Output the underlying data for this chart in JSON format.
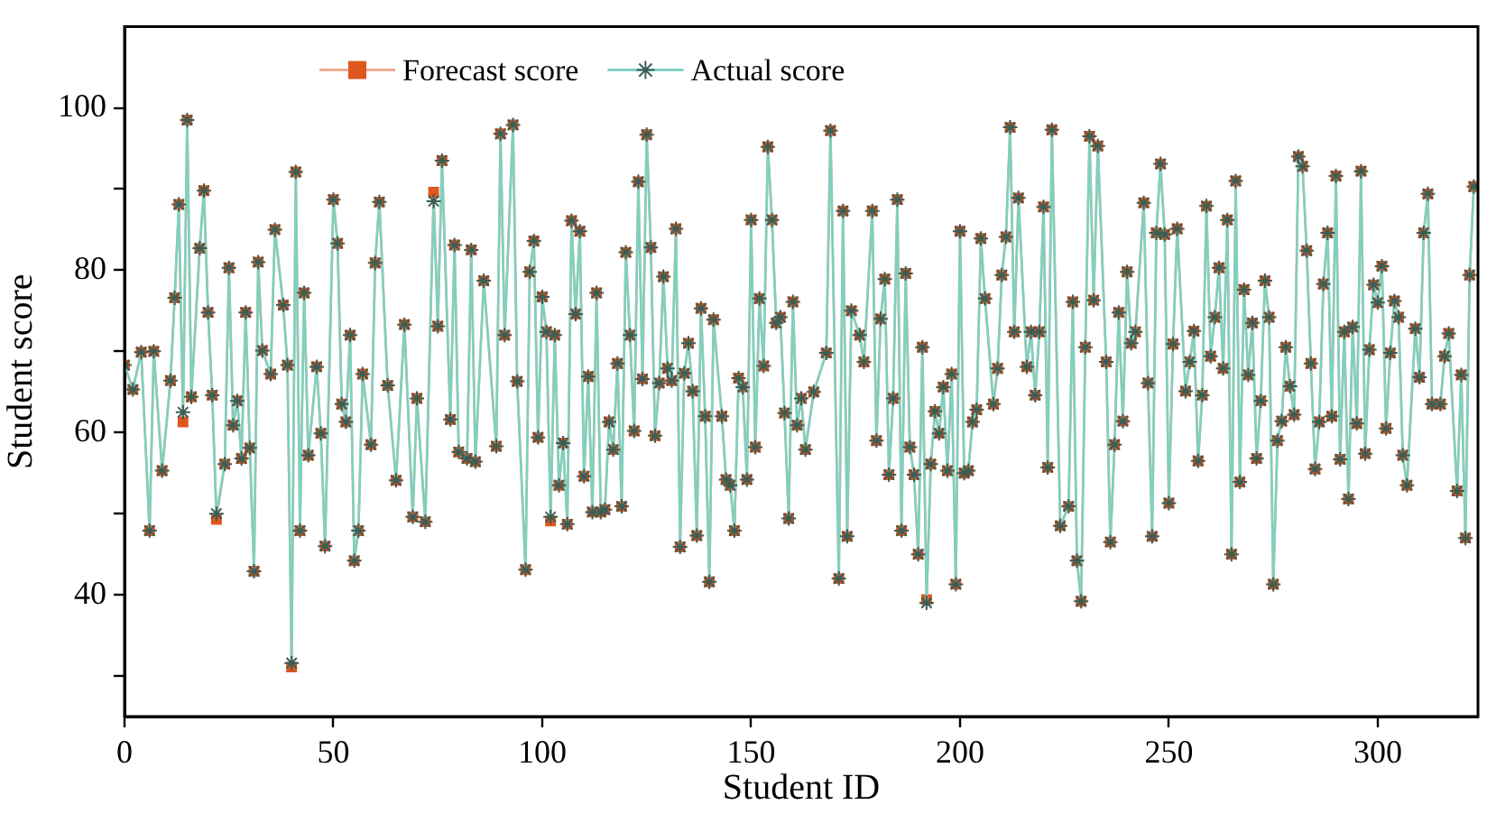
{
  "chart_data": {
    "type": "line",
    "xlabel": "Student ID",
    "ylabel": "Student score",
    "legend": "top left",
    "grid": false,
    "xlim": [
      0,
      324
    ],
    "ylim": [
      25,
      110
    ],
    "xticks": [
      0,
      50,
      100,
      150,
      200,
      250,
      300
    ],
    "yticks": [
      {
        "value": 30,
        "label": null
      },
      40,
      {
        "value": 50,
        "label": null
      },
      60,
      {
        "value": 70,
        "label": null
      },
      80,
      {
        "value": 90,
        "label": null
      },
      100
    ],
    "x": [
      0,
      2,
      4,
      6,
      7,
      9,
      11,
      12,
      13,
      14,
      15,
      16,
      18,
      19,
      20,
      21,
      22,
      24,
      25,
      26,
      27,
      28,
      29,
      30,
      31,
      32,
      33,
      35,
      36,
      38,
      39,
      40,
      41,
      42,
      43,
      44,
      46,
      47,
      48,
      50,
      51,
      52,
      53,
      54,
      55,
      56,
      57,
      59,
      60,
      61,
      63,
      65,
      67,
      69,
      70,
      72,
      74,
      75,
      76,
      78,
      79,
      80,
      82,
      83,
      84,
      86,
      89,
      90,
      91,
      93,
      94,
      96,
      97,
      98,
      99,
      100,
      101,
      102,
      103,
      104,
      105,
      106,
      107,
      108,
      109,
      110,
      111,
      112,
      113,
      114,
      115,
      116,
      117,
      118,
      119,
      120,
      121,
      122,
      123,
      124,
      125,
      126,
      127,
      128,
      129,
      130,
      131,
      132,
      133,
      134,
      135,
      136,
      137,
      138,
      139,
      140,
      141,
      143,
      144,
      145,
      146,
      147,
      148,
      149,
      150,
      151,
      152,
      153,
      154,
      155,
      156,
      157,
      158,
      159,
      160,
      161,
      162,
      163,
      165,
      168,
      169,
      171,
      172,
      173,
      174,
      176,
      177,
      179,
      180,
      181,
      182,
      183,
      184,
      185,
      186,
      187,
      188,
      189,
      190,
      191,
      192,
      193,
      194,
      195,
      196,
      197,
      198,
      199,
      200,
      201,
      202,
      203,
      204,
      205,
      206,
      208,
      209,
      210,
      211,
      212,
      213,
      214,
      216,
      217,
      218,
      219,
      220,
      221,
      222,
      224,
      226,
      227,
      228,
      229,
      230,
      231,
      232,
      233,
      235,
      236,
      237,
      238,
      239,
      240,
      241,
      242,
      244,
      245,
      246,
      247,
      248,
      249,
      250,
      251,
      252,
      254,
      255,
      256,
      257,
      258,
      259,
      260,
      261,
      262,
      263,
      264,
      265,
      266,
      267,
      268,
      269,
      270,
      271,
      272,
      273,
      274,
      275,
      276,
      277,
      278,
      279,
      280,
      281,
      282,
      283,
      284,
      285,
      286,
      287,
      288,
      289,
      290,
      291,
      292,
      293,
      294,
      295,
      296,
      297,
      298,
      299,
      300,
      301,
      302,
      303,
      304,
      305,
      306,
      307,
      309,
      310,
      311,
      312,
      313,
      315,
      316,
      317,
      319,
      320,
      321,
      322,
      323
    ],
    "series": [
      {
        "name": "Forecast score",
        "color": "#e0561f",
        "marker": "square",
        "values": [
          68.3,
          65.3,
          69.9,
          47.9,
          70,
          55.3,
          66.4,
          76.6,
          88.1,
          61.3,
          98.5,
          64.4,
          82.7,
          89.8,
          74.8,
          64.6,
          49.3,
          56.1,
          80.3,
          60.9,
          63.9,
          56.8,
          74.8,
          58.1,
          42.9,
          81.0,
          70.1,
          67.2,
          85.0,
          75.7,
          68.3,
          31.1,
          92.1,
          47.9,
          77.2,
          57.2,
          68.1,
          59.9,
          46.0,
          88.7,
          83.3,
          63.5,
          61.3,
          72.0,
          44.2,
          47.9,
          67.2,
          58.5,
          80.9,
          88.4,
          65.8,
          54.1,
          73.3,
          49.6,
          64.2,
          49.0,
          89.6,
          73.1,
          93.5,
          61.6,
          83.1,
          57.6,
          56.8,
          82.5,
          56.4,
          78.7,
          58.3,
          96.8,
          72.0,
          97.9,
          66.3,
          43.1,
          79.8,
          83.6,
          59.4,
          76.7,
          72.4,
          49.1,
          72.0,
          53.5,
          58.7,
          48.7,
          86.1,
          74.6,
          84.8,
          54.6,
          66.9,
          50.2,
          77.2,
          50.2,
          50.5,
          61.3,
          57.9,
          68.5,
          50.9,
          82.2,
          72.0,
          60.2,
          90.9,
          66.6,
          96.7,
          82.8,
          59.6,
          66.1,
          79.2,
          67.9,
          66.4,
          85.1,
          45.9,
          67.3,
          71.0,
          65.1,
          47.3,
          75.3,
          62.0,
          41.6,
          73.9,
          62.0,
          54.2,
          53.5,
          47.9,
          66.7,
          65.6,
          54.2,
          86.2,
          58.2,
          76.5,
          68.2,
          95.2,
          86.2,
          73.5,
          74.2,
          62.4,
          49.4,
          76.1,
          60.9,
          64.2,
          57.9,
          65.0,
          69.8,
          97.2,
          42.0,
          87.3,
          47.2,
          75.0,
          72.0,
          68.7,
          87.3,
          59.0,
          74.0,
          78.9,
          54.8,
          64.2,
          88.7,
          47.9,
          79.6,
          58.2,
          54.8,
          45.0,
          70.5,
          39.4,
          56.1,
          62.6,
          59.9,
          65.6,
          55.3,
          67.2,
          41.3,
          84.8,
          55.0,
          55.3,
          61.3,
          62.8,
          83.9,
          76.5,
          63.5,
          67.9,
          79.4,
          84.1,
          97.6,
          72.4,
          88.9,
          68.1,
          72.4,
          64.6,
          72.4,
          87.8,
          55.7,
          97.3,
          48.5,
          50.9,
          76.1,
          44.2,
          39.2,
          70.5,
          96.5,
          76.3,
          95.3,
          68.7,
          46.5,
          58.5,
          74.8,
          61.4,
          79.8,
          71.0,
          72.4,
          88.3,
          66.1,
          47.2,
          84.6,
          93.1,
          84.4,
          51.3,
          70.9,
          85.1,
          65.1,
          68.7,
          72.5,
          56.5,
          64.6,
          87.9,
          69.4,
          74.2,
          80.3,
          67.9,
          86.2,
          45.0,
          91.0,
          53.9,
          77.6,
          67.1,
          73.5,
          56.8,
          63.9,
          78.7,
          74.2,
          41.3,
          59.0,
          61.4,
          70.5,
          65.7,
          62.2,
          94.0,
          92.8,
          82.4,
          68.5,
          55.5,
          61.3,
          78.3,
          84.6,
          62.0,
          91.6,
          56.7,
          72.4,
          51.8,
          73.0,
          61.1,
          92.2,
          57.4,
          70.2,
          78.2,
          76.0,
          80.5,
          60.5,
          69.8,
          76.2,
          74.2,
          57.2,
          53.5,
          72.8,
          66.8,
          84.6,
          89.4,
          63.5,
          63.5,
          69.4,
          72.2,
          52.8,
          67.1,
          47.0,
          79.4,
          90.3
        ]
      },
      {
        "name": "Actual score",
        "color": "#7fd0c0",
        "marker": "cross",
        "values": [
          68.3,
          65.3,
          69.9,
          47.9,
          70,
          55.3,
          66.4,
          76.6,
          88.1,
          62.5,
          98.5,
          64.4,
          82.7,
          89.8,
          74.8,
          64.6,
          50.0,
          56.1,
          80.3,
          60.9,
          63.9,
          56.8,
          74.8,
          58.1,
          42.9,
          81.0,
          70.1,
          67.2,
          85.0,
          75.7,
          68.3,
          31.6,
          92.1,
          47.9,
          77.2,
          57.2,
          68.1,
          59.9,
          46.0,
          88.7,
          83.3,
          63.5,
          61.3,
          72.0,
          44.2,
          47.9,
          67.2,
          58.5,
          80.9,
          88.4,
          65.8,
          54.1,
          73.3,
          49.6,
          64.2,
          49.0,
          88.5,
          73.1,
          93.5,
          61.6,
          83.1,
          57.6,
          56.8,
          82.5,
          56.4,
          78.7,
          58.3,
          96.8,
          72.0,
          97.9,
          66.3,
          43.1,
          79.8,
          83.6,
          59.4,
          76.7,
          72.4,
          49.6,
          72.0,
          53.5,
          58.7,
          48.7,
          86.1,
          74.6,
          84.8,
          54.6,
          66.9,
          50.2,
          77.2,
          50.2,
          50.5,
          61.3,
          57.9,
          68.5,
          50.9,
          82.2,
          72.0,
          60.2,
          90.9,
          66.6,
          96.7,
          82.8,
          59.6,
          66.1,
          79.2,
          67.9,
          66.4,
          85.1,
          45.9,
          67.3,
          71.0,
          65.1,
          47.3,
          75.3,
          62.0,
          41.6,
          73.9,
          62.0,
          54.2,
          53.5,
          47.9,
          66.7,
          65.6,
          54.2,
          86.2,
          58.2,
          76.5,
          68.2,
          95.2,
          86.2,
          73.5,
          74.2,
          62.4,
          49.4,
          76.1,
          60.9,
          64.2,
          57.9,
          65.0,
          69.8,
          97.2,
          42.0,
          87.3,
          47.2,
          75.0,
          72.0,
          68.7,
          87.3,
          59.0,
          74.0,
          78.9,
          54.8,
          64.2,
          88.7,
          47.9,
          79.6,
          58.2,
          54.8,
          45.0,
          70.5,
          39.0,
          56.1,
          62.6,
          59.9,
          65.6,
          55.3,
          67.2,
          41.3,
          84.8,
          55.0,
          55.3,
          61.3,
          62.8,
          83.9,
          76.5,
          63.5,
          67.9,
          79.4,
          84.1,
          97.6,
          72.4,
          88.9,
          68.1,
          72.4,
          64.6,
          72.4,
          87.8,
          55.7,
          97.3,
          48.5,
          50.9,
          76.1,
          44.2,
          39.2,
          70.5,
          96.5,
          76.3,
          95.3,
          68.7,
          46.5,
          58.5,
          74.8,
          61.4,
          79.8,
          71.0,
          72.4,
          88.3,
          66.1,
          47.2,
          84.6,
          93.1,
          84.4,
          51.3,
          70.9,
          85.1,
          65.1,
          68.7,
          72.5,
          56.5,
          64.6,
          87.9,
          69.4,
          74.2,
          80.3,
          67.9,
          86.2,
          45.0,
          91.0,
          53.9,
          77.6,
          67.1,
          73.5,
          56.8,
          63.9,
          78.7,
          74.2,
          41.3,
          59.0,
          61.4,
          70.5,
          65.7,
          62.2,
          94.0,
          92.8,
          82.4,
          68.5,
          55.5,
          61.3,
          78.3,
          84.6,
          62.0,
          91.6,
          56.7,
          72.4,
          51.8,
          73.0,
          61.1,
          92.2,
          57.4,
          70.2,
          78.2,
          76.0,
          80.5,
          60.5,
          69.8,
          76.2,
          74.2,
          57.2,
          53.5,
          72.8,
          66.8,
          84.6,
          89.4,
          63.5,
          63.5,
          69.4,
          72.2,
          52.8,
          67.1,
          47.0,
          79.4,
          90.3
        ]
      }
    ]
  }
}
